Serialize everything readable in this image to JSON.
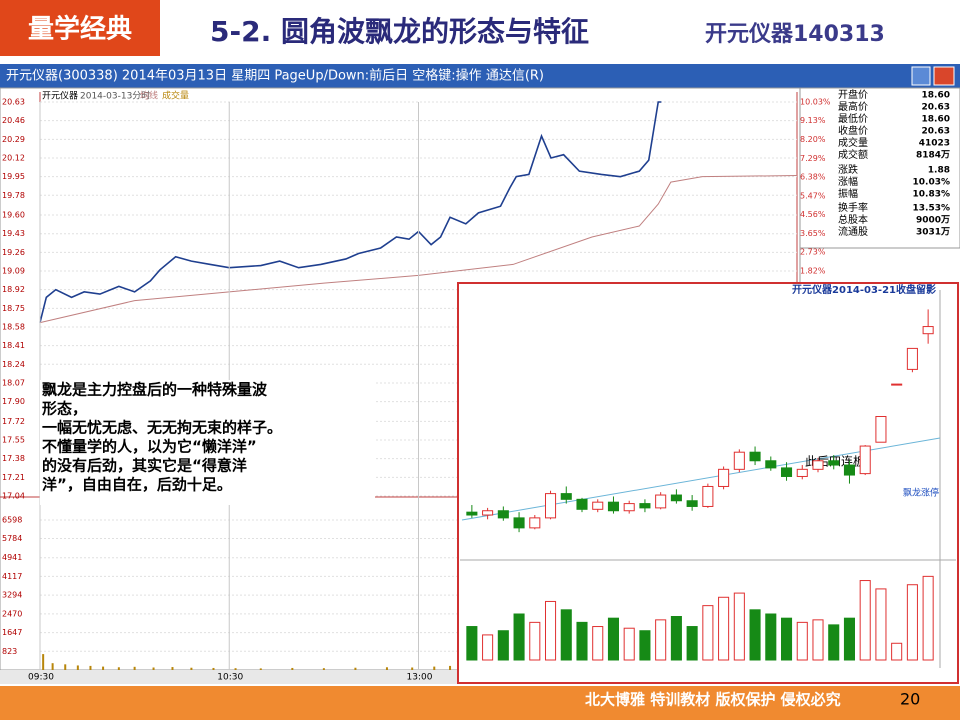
{
  "slide": {
    "logo": "量学经典",
    "title": "5-2. 圆角波飘龙的形态与特征",
    "title_suffix": "开元仪器140313",
    "footer": "北大博雅 特训教材 版权保护 侵权必究",
    "page": "20"
  },
  "window_title": "开元仪器(300338) 2014年03月13日 星期四 PageUp/Down:前后日 空格键:操作 通达信(R)",
  "stats": [
    {
      "label": "开盘价",
      "value": "18.60"
    },
    {
      "label": "最高价",
      "value": "20.63"
    },
    {
      "label": "最低价",
      "value": "18.60"
    },
    {
      "label": "收盘价",
      "value": "20.63"
    },
    {
      "label": "成交量",
      "value": "41023"
    },
    {
      "label": "成交额",
      "value": "8184万"
    },
    {
      "label": "涨跌",
      "value": "1.88"
    },
    {
      "label": "涨幅",
      "value": "10.03%"
    },
    {
      "label": "振幅",
      "value": "10.83%"
    },
    {
      "label": "换手率",
      "value": "13.53%"
    },
    {
      "label": "总股本",
      "value": "9000万"
    },
    {
      "label": "流通股",
      "value": "3031万"
    }
  ],
  "note_lines": [
    "飘龙是主力控盘后的一种特殊量波",
    "形态，",
    "一幅无忧无虑、无无拘无束的样子。",
    "不懂量学的人，以为它“懒洋洋”",
    "的没有后劲，其实它是“得意洋",
    "洋”，自由自在，后劲十足。"
  ],
  "chart_data": [
    {
      "type": "line",
      "title": "开元仪器",
      "subtitle": "2014-03-13分时",
      "xlim": [
        0,
        240
      ],
      "ylim": [
        17.04,
        20.63
      ],
      "yticks": [
        20.63,
        20.46,
        20.29,
        20.12,
        19.95,
        19.78,
        {
          "value": 19.6,
          "label": "19.60"
        },
        19.43,
        19.26,
        19.09,
        18.92,
        18.75,
        18.58,
        18.41,
        18.24,
        18.07,
        {
          "value": 17.9,
          "label": "17.90"
        },
        17.72,
        17.55,
        17.38,
        17.21,
        17.04
      ],
      "y2lim": [
        -9.12,
        10.03
      ],
      "y2ticks": [
        {
          "value": 10.03,
          "label": "10.03%"
        },
        {
          "value": 9.13,
          "label": "9.13%"
        },
        {
          "value": 8.2,
          "label": "8.20%"
        },
        {
          "value": 7.29,
          "label": "7.29%"
        },
        {
          "value": 6.38,
          "label": "6.38%"
        },
        {
          "value": 5.47,
          "label": "5.47%"
        },
        {
          "value": 4.56,
          "label": "4.56%"
        },
        {
          "value": 3.65,
          "label": "3.65%"
        },
        {
          "value": 2.73,
          "label": "2.73%"
        },
        {
          "value": 1.82,
          "label": "1.82%"
        }
      ],
      "series": [
        {
          "color": "#1f3f8f",
          "x": [
            0,
            2,
            5,
            10,
            14,
            19,
            25,
            30,
            35,
            38,
            43,
            48,
            54,
            60,
            70,
            76,
            82,
            89,
            97,
            101,
            108,
            113,
            117,
            120,
            124,
            127,
            130,
            135,
            139,
            146,
            149,
            151,
            155,
            159,
            162,
            166,
            171,
            178,
            184,
            190,
            193,
            196,
            197
          ],
          "values": [
            18.62,
            18.85,
            18.92,
            18.85,
            18.9,
            18.88,
            18.95,
            18.9,
            19.0,
            19.1,
            19.22,
            19.18,
            19.15,
            19.12,
            19.14,
            19.18,
            19.12,
            19.15,
            19.2,
            19.25,
            19.3,
            19.4,
            19.38,
            19.45,
            19.33,
            19.4,
            19.58,
            19.52,
            19.62,
            19.68,
            19.85,
            19.95,
            19.97,
            20.32,
            20.12,
            20.15,
            20.0,
            19.97,
            19.95,
            20.0,
            20.1,
            20.63,
            20.63
          ]
        },
        {
          "name": "均线",
          "color": "#c08080",
          "x": [
            0,
            30,
            60,
            90,
            120,
            150,
            175,
            190,
            196,
            200,
            210,
            240
          ],
          "values": [
            18.62,
            18.82,
            18.9,
            18.98,
            19.05,
            19.15,
            19.4,
            19.5,
            19.7,
            19.9,
            19.95,
            19.96
          ]
        }
      ]
    },
    {
      "type": "bar",
      "xlim": [
        0,
        240
      ],
      "ylim": [
        0,
        7568
      ],
      "yticks": [
        6598,
        5784,
        4941,
        4117,
        3294,
        2470,
        1647,
        823
      ],
      "xticks": [
        {
          "value": 0,
          "label": "09:30"
        },
        {
          "value": 60,
          "label": "10:30"
        },
        {
          "value": 120,
          "label": "13:00"
        }
      ],
      "series": [
        {
          "name": "成交量",
          "color": "#b8860b",
          "x": [
            1,
            4,
            8,
            12,
            16,
            20,
            25,
            30,
            36,
            42,
            48,
            55,
            62,
            70,
            80,
            90,
            100,
            110,
            118,
            125,
            130,
            140,
            150,
            155,
            160,
            170,
            180,
            190,
            196
          ],
          "values": [
            700,
            300,
            250,
            200,
            180,
            150,
            120,
            140,
            110,
            130,
            100,
            90,
            80,
            70,
            90,
            80,
            100,
            120,
            110,
            150,
            180,
            140,
            200,
            220,
            260,
            180,
            150,
            200,
            620
          ]
        }
      ]
    },
    {
      "type": "candlestick",
      "title": "开元仪器2014-03-21收盘留影",
      "annotations": [
        "此后四连板",
        "飘龙涨停"
      ],
      "ylim": [
        13,
        31
      ],
      "open": [
        16.0,
        15.8,
        16.1,
        15.6,
        14.9,
        15.6,
        17.3,
        16.9,
        16.2,
        16.7,
        16.1,
        16.6,
        16.3,
        17.2,
        16.8,
        16.4,
        17.8,
        19.0,
        20.2,
        19.6,
        19.1,
        18.5,
        19.0,
        19.6,
        19.3,
        18.7,
        20.9,
        24.97,
        26.0,
        28.5
      ],
      "high": [
        16.5,
        16.3,
        16.4,
        16.0,
        15.8,
        17.5,
        17.8,
        17.0,
        16.9,
        17.1,
        16.8,
        16.9,
        17.4,
        17.6,
        17.2,
        18.0,
        19.2,
        20.4,
        20.6,
        19.9,
        19.5,
        19.3,
        19.8,
        20.0,
        19.6,
        20.7,
        22.7,
        24.97,
        27.47,
        30.2
      ],
      "low": [
        15.6,
        15.5,
        15.4,
        14.6,
        14.8,
        15.5,
        16.6,
        16.0,
        16.0,
        15.9,
        15.9,
        16.0,
        16.2,
        16.6,
        16.1,
        16.3,
        17.6,
        18.8,
        19.3,
        18.9,
        18.2,
        18.3,
        18.8,
        19.0,
        18.0,
        18.6,
        20.9,
        24.97,
        25.8,
        27.8
      ],
      "close": [
        15.8,
        16.1,
        15.6,
        14.9,
        15.6,
        17.3,
        16.9,
        16.2,
        16.7,
        16.1,
        16.6,
        16.3,
        17.2,
        16.8,
        16.4,
        17.8,
        19.0,
        20.2,
        19.6,
        19.1,
        18.5,
        19.0,
        19.6,
        19.3,
        18.6,
        20.63,
        22.7,
        24.97,
        27.47,
        29.0
      ]
    },
    {
      "type": "bar",
      "ylim": [
        0,
        110
      ],
      "values": [
        40,
        30,
        35,
        55,
        45,
        70,
        60,
        45,
        40,
        50,
        38,
        35,
        48,
        52,
        40,
        65,
        75,
        80,
        60,
        55,
        50,
        45,
        48,
        42,
        50,
        95,
        85,
        20,
        90,
        100
      ]
    }
  ]
}
